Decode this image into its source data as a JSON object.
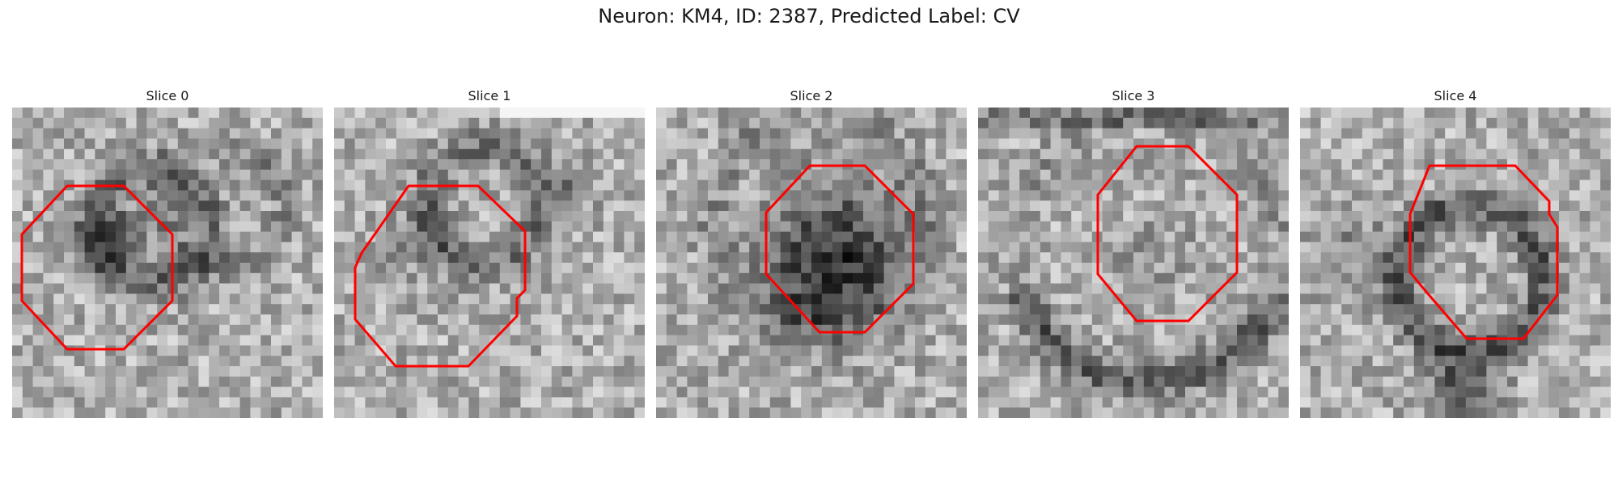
{
  "figure": {
    "title": "Neuron: KM4, ID: 2387, Predicted Label: CV",
    "overlay_color": "#ff0000",
    "panels": [
      {
        "title": "Slice 0",
        "variant": 0
      },
      {
        "title": "Slice 1",
        "variant": 1
      },
      {
        "title": "Slice 2",
        "variant": 2
      },
      {
        "title": "Slice 3",
        "variant": 3
      },
      {
        "title": "Slice 4",
        "variant": 4
      }
    ]
  }
}
